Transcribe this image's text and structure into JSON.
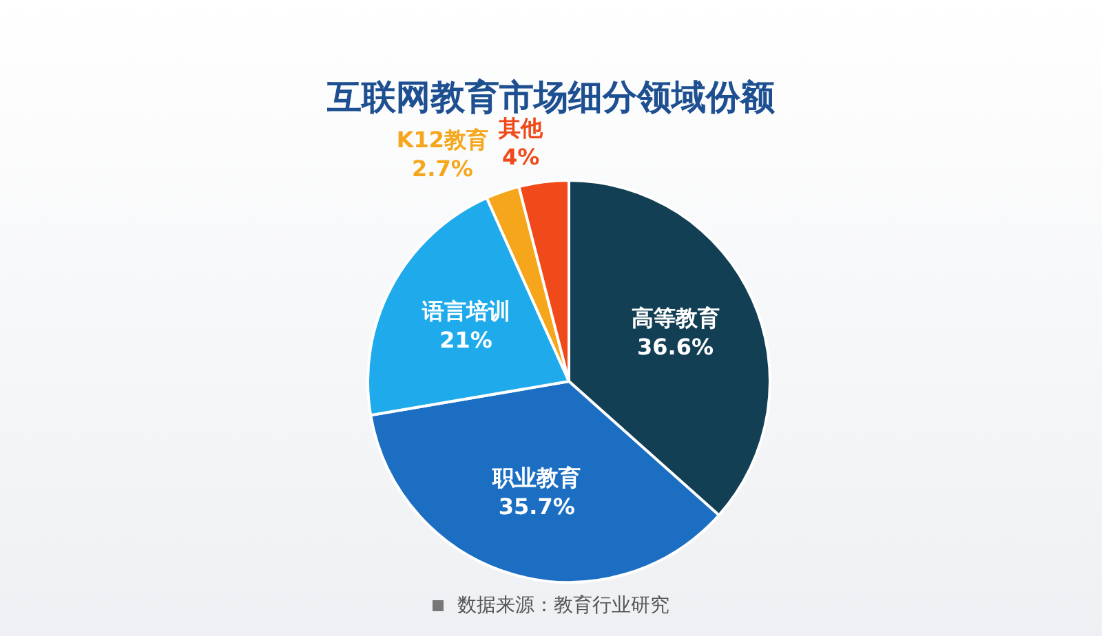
{
  "chart_data": {
    "type": "pie",
    "title": "互联网教育市场细分领域份额",
    "categories": [
      "高等教育",
      "职业教育",
      "语言培训",
      "K12教育",
      "其他"
    ],
    "values": [
      36.6,
      35.7,
      21,
      2.7,
      4
    ],
    "value_labels": [
      "36.6%",
      "35.7%",
      "21%",
      "2.7%",
      "4%"
    ],
    "colors": [
      "#133f54",
      "#1b6ec2",
      "#1eaaeb",
      "#f5a61b",
      "#f0491a"
    ],
    "legend": false,
    "annotations": [
      "数据来源：教育行业研究"
    ]
  }
}
